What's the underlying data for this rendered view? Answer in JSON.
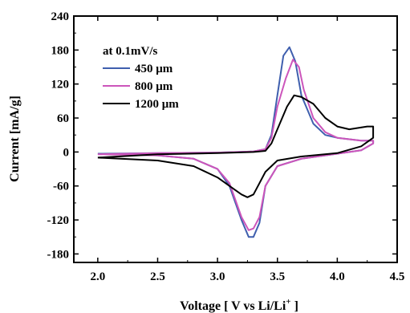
{
  "chart_data": {
    "type": "line",
    "legend_title": "at 0.1mV/s",
    "xlabel": "Voltage [ V vs Li/Li",
    "xlabel_sup": "+",
    "xlabel_end": " ]",
    "ylabel": "Current [mA/g]",
    "xlim": [
      1.8,
      4.5
    ],
    "ylim": [
      -195,
      240
    ],
    "x_ticks": [
      "2.0",
      "2.5",
      "3.0",
      "3.5",
      "4.0",
      "4.5"
    ],
    "y_ticks": [
      "-180",
      "-120",
      "-60",
      "0",
      "60",
      "120",
      "180",
      "240"
    ],
    "legend_position": "top-left",
    "series": [
      {
        "name": "450 μm",
        "color": "#3f5fae",
        "points": [
          [
            2.0,
            -3
          ],
          [
            2.5,
            -6
          ],
          [
            2.8,
            -12
          ],
          [
            3.0,
            -30
          ],
          [
            3.1,
            -60
          ],
          [
            3.2,
            -120
          ],
          [
            3.26,
            -150
          ],
          [
            3.3,
            -150
          ],
          [
            3.35,
            -125
          ],
          [
            3.4,
            -60
          ],
          [
            3.5,
            -25
          ],
          [
            3.7,
            -12
          ],
          [
            4.0,
            -3
          ],
          [
            4.2,
            3
          ],
          [
            4.3,
            15
          ],
          [
            4.3,
            20
          ],
          [
            4.2,
            20
          ],
          [
            4.0,
            25
          ],
          [
            3.9,
            30
          ],
          [
            3.8,
            50
          ],
          [
            3.7,
            100
          ],
          [
            3.65,
            160
          ],
          [
            3.6,
            185
          ],
          [
            3.55,
            170
          ],
          [
            3.5,
            100
          ],
          [
            3.45,
            30
          ],
          [
            3.4,
            5
          ],
          [
            3.3,
            1
          ],
          [
            3.0,
            -1
          ],
          [
            2.5,
            -2
          ],
          [
            2.0,
            -3
          ]
        ]
      },
      {
        "name": "800 μm",
        "color": "#cc55bb",
        "points": [
          [
            2.0,
            -4
          ],
          [
            2.5,
            -6
          ],
          [
            2.8,
            -12
          ],
          [
            3.0,
            -30
          ],
          [
            3.1,
            -55
          ],
          [
            3.2,
            -115
          ],
          [
            3.26,
            -138
          ],
          [
            3.3,
            -135
          ],
          [
            3.35,
            -115
          ],
          [
            3.4,
            -60
          ],
          [
            3.5,
            -25
          ],
          [
            3.7,
            -12
          ],
          [
            4.0,
            -3
          ],
          [
            4.2,
            3
          ],
          [
            4.3,
            15
          ],
          [
            4.3,
            20
          ],
          [
            4.2,
            20
          ],
          [
            4.0,
            25
          ],
          [
            3.9,
            35
          ],
          [
            3.8,
            60
          ],
          [
            3.72,
            110
          ],
          [
            3.68,
            150
          ],
          [
            3.63,
            163
          ],
          [
            3.57,
            130
          ],
          [
            3.5,
            80
          ],
          [
            3.45,
            25
          ],
          [
            3.4,
            5
          ],
          [
            3.3,
            1
          ],
          [
            3.0,
            -1
          ],
          [
            2.5,
            -2
          ],
          [
            2.0,
            -4
          ]
        ]
      },
      {
        "name": "1200 μm",
        "color": "#000000",
        "points": [
          [
            2.0,
            -10
          ],
          [
            2.5,
            -15
          ],
          [
            2.8,
            -25
          ],
          [
            3.0,
            -45
          ],
          [
            3.1,
            -60
          ],
          [
            3.2,
            -75
          ],
          [
            3.25,
            -80
          ],
          [
            3.3,
            -75
          ],
          [
            3.35,
            -55
          ],
          [
            3.4,
            -35
          ],
          [
            3.5,
            -15
          ],
          [
            3.7,
            -8
          ],
          [
            4.0,
            -2
          ],
          [
            4.2,
            10
          ],
          [
            4.3,
            25
          ],
          [
            4.3,
            45
          ],
          [
            4.25,
            45
          ],
          [
            4.1,
            40
          ],
          [
            4.0,
            45
          ],
          [
            3.9,
            60
          ],
          [
            3.8,
            85
          ],
          [
            3.7,
            97
          ],
          [
            3.64,
            100
          ],
          [
            3.58,
            80
          ],
          [
            3.5,
            40
          ],
          [
            3.45,
            15
          ],
          [
            3.4,
            2
          ],
          [
            3.3,
            0
          ],
          [
            3.0,
            -2
          ],
          [
            2.5,
            -4
          ],
          [
            2.0,
            -10
          ]
        ]
      }
    ]
  }
}
